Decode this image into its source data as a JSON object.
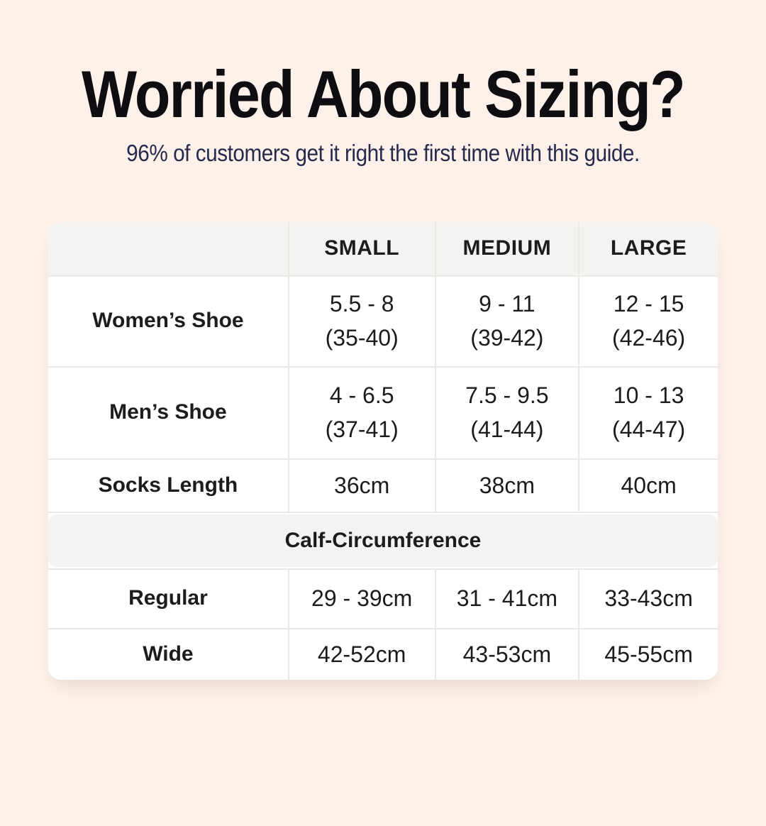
{
  "header": {
    "title": "Worried About Sizing?",
    "subtitle": "96% of customers get it right the first time with this guide."
  },
  "colors": {
    "page_background": "#fdf1e9",
    "card_background": "#ffffff",
    "header_band_background": "#f4f3f1",
    "grid_line": "#eae8e5",
    "title_text": "#0e0e12",
    "subtitle_text": "#262a4d",
    "table_text": "#1c1c1e"
  },
  "table": {
    "columns": [
      "SMALL",
      "MEDIUM",
      "LARGE"
    ],
    "rows": [
      {
        "label": "Women’s Shoe",
        "cells": [
          {
            "line1": "5.5 - 8",
            "line2": "(35-40)"
          },
          {
            "line1": "9 - 11",
            "line2": "(39-42)"
          },
          {
            "line1": "12 - 15",
            "line2": "(42-46)"
          }
        ]
      },
      {
        "label": "Men’s Shoe",
        "cells": [
          {
            "line1": "4 - 6.5",
            "line2": "(37-41)"
          },
          {
            "line1": "7.5 - 9.5",
            "line2": "(41-44)"
          },
          {
            "line1": "10 - 13",
            "line2": "(44-47)"
          }
        ]
      },
      {
        "label": "Socks Length",
        "cells": [
          {
            "line1": "36cm"
          },
          {
            "line1": "38cm"
          },
          {
            "line1": "40cm"
          }
        ]
      }
    ],
    "section_header": "Calf-Circumference",
    "section_rows": [
      {
        "label": "Regular",
        "cells": [
          {
            "line1": "29 - 39cm"
          },
          {
            "line1": "31 - 41cm"
          },
          {
            "line1": "33-43cm"
          }
        ]
      },
      {
        "label": "Wide",
        "cells": [
          {
            "line1": "42-52cm"
          },
          {
            "line1": "43-53cm"
          },
          {
            "line1": "45-55cm"
          }
        ]
      }
    ]
  }
}
